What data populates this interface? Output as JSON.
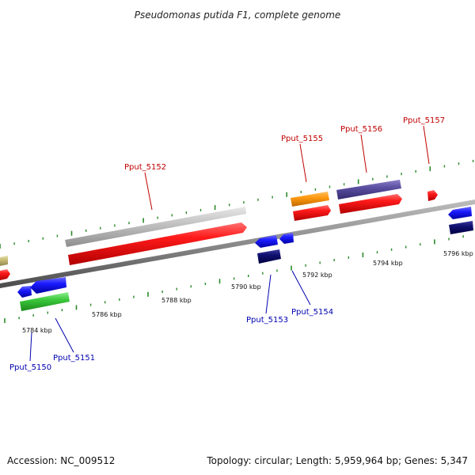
{
  "title": "Pseudomonas putida F1, complete genome",
  "footer": {
    "accession": "Accession: NC_009512",
    "summary": "Topology: circular; Length: 5,959,964 bp; Genes: 5,347"
  },
  "colors": {
    "backbone": "#8a8a8a",
    "tick": "#2a8a2a",
    "red_label": "#c00000",
    "blue_label": "#0000b0"
  },
  "scale_labels": [
    "5784 kbp",
    "5786 kbp",
    "5788 kbp",
    "5790 kbp",
    "5792 kbp",
    "5794 kbp",
    "5796 kbp"
  ],
  "gene_labels_top": [
    "Pput_5152",
    "Pput_5155",
    "Pput_5156",
    "Pput_5157"
  ],
  "gene_labels_bottom": [
    "Pput_5150",
    "Pput_5151",
    "Pput_5153",
    "Pput_5154"
  ]
}
